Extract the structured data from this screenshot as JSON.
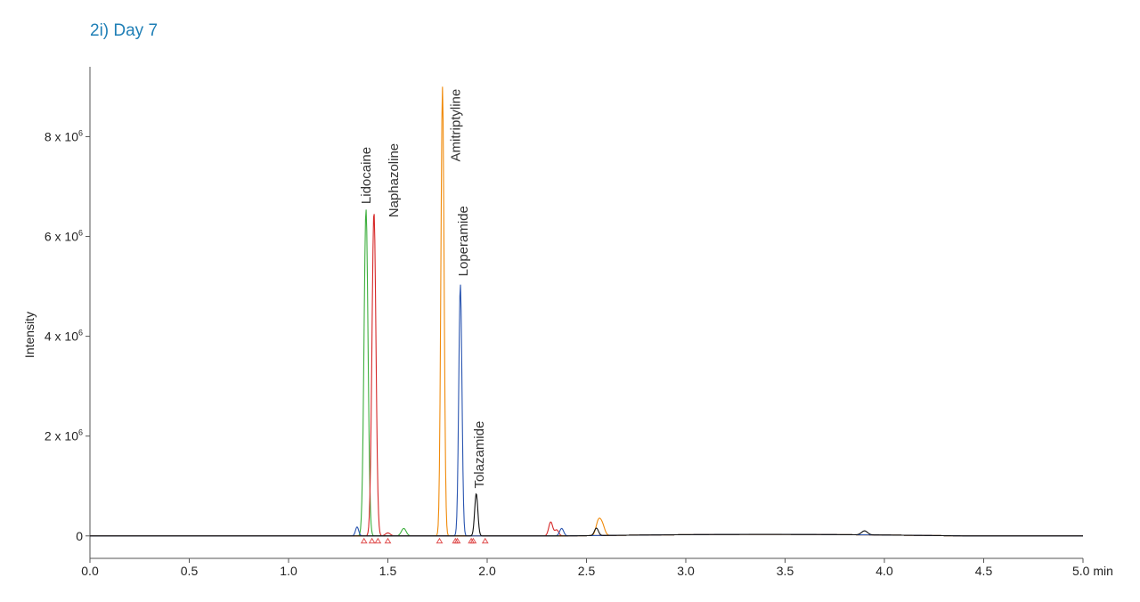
{
  "title": "2i) Day 7",
  "chart_data": {
    "type": "line",
    "title": "2i) Day 7",
    "xlabel": "",
    "x_unit": "min",
    "ylabel": "Intensity",
    "xlim": [
      0.0,
      5.0
    ],
    "ylim": [
      -450000,
      9400000
    ],
    "x_ticks": [
      0.0,
      0.5,
      1.0,
      1.5,
      2.0,
      2.5,
      3.0,
      3.5,
      4.0,
      4.5,
      5.0
    ],
    "x_tick_labels": [
      "0.0",
      "0.5",
      "1.0",
      "1.5",
      "2.0",
      "2.5",
      "3.0",
      "3.5",
      "4.0",
      "4.5",
      "5.0 min"
    ],
    "y_ticks": [
      0,
      2000000,
      4000000,
      6000000,
      8000000
    ],
    "y_tick_labels": [
      {
        "mantissa": "0",
        "exp": ""
      },
      {
        "mantissa": "2 x 10",
        "exp": "6"
      },
      {
        "mantissa": "4 x 10",
        "exp": "6"
      },
      {
        "mantissa": "6 x 10",
        "exp": "6"
      },
      {
        "mantissa": "8 x 10",
        "exp": "6"
      }
    ],
    "grid": false,
    "legend": "none",
    "series": [
      {
        "color": "#3cae3c",
        "peaks": [
          {
            "t": 1.39,
            "h": 6550000,
            "w": 0.01
          },
          {
            "t": 1.58,
            "h": 150000,
            "w": 0.012
          }
        ]
      },
      {
        "color": "#d62828",
        "peaks": [
          {
            "t": 1.43,
            "h": 6500000,
            "w": 0.01
          },
          {
            "t": 1.5,
            "h": 60000,
            "w": 0.012
          },
          {
            "t": 2.32,
            "h": 280000,
            "w": 0.01
          },
          {
            "t": 2.35,
            "h": 120000,
            "w": 0.01
          }
        ]
      },
      {
        "color": "#f08a0a",
        "peaks": [
          {
            "t": 1.775,
            "h": 9000000,
            "w": 0.008
          },
          {
            "t": 2.56,
            "h": 280000,
            "w": 0.012
          },
          {
            "t": 2.58,
            "h": 200000,
            "w": 0.012
          }
        ]
      },
      {
        "color": "#2a55b0",
        "peaks": [
          {
            "t": 1.345,
            "h": 180000,
            "w": 0.008
          },
          {
            "t": 1.865,
            "h": 5050000,
            "w": 0.008
          },
          {
            "t": 2.375,
            "h": 150000,
            "w": 0.01
          }
        ]
      },
      {
        "color": "#111111",
        "peaks": [
          {
            "t": 1.945,
            "h": 850000,
            "w": 0.008
          },
          {
            "t": 2.55,
            "h": 150000,
            "w": 0.01
          },
          {
            "t": 3.9,
            "h": 80000,
            "w": 0.015
          }
        ]
      }
    ],
    "annotations": [
      {
        "text": "Lidocaine",
        "x": 1.39,
        "y": 6650000
      },
      {
        "text": "Naphazoline",
        "x": 1.53,
        "y": 6380000
      },
      {
        "text": "Amitriptyline",
        "x": 1.84,
        "y": 7500000
      },
      {
        "text": "Loperamide",
        "x": 1.88,
        "y": 5200000
      },
      {
        "text": "Tolazamide",
        "x": 1.96,
        "y": 950000
      }
    ],
    "peak_markers": [
      1.38,
      1.42,
      1.45,
      1.5,
      1.76,
      1.84,
      1.85,
      1.92,
      1.93,
      1.99
    ]
  }
}
